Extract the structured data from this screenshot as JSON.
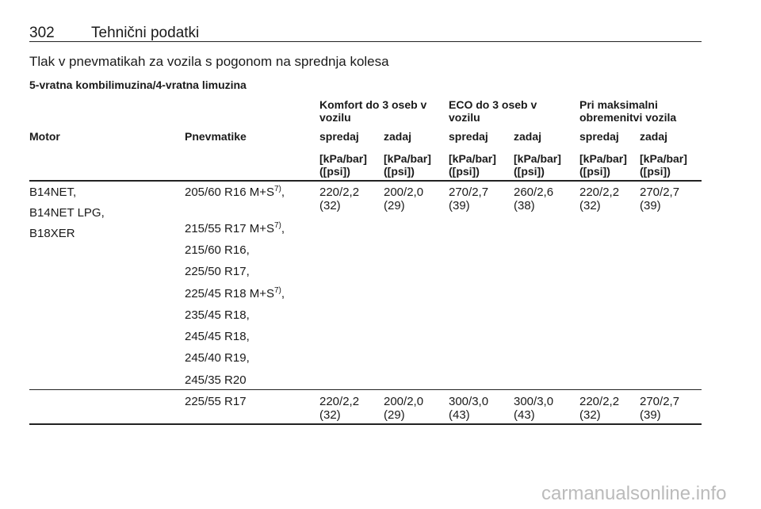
{
  "header": {
    "page": "302",
    "section": "Tehnični podatki"
  },
  "title": "Tlak v pnevmatikah za vozila s pogonom na sprednja kolesa",
  "subtitle": "5-vratna kombilimuzina/4-vratna limuzina",
  "table": {
    "groups": [
      "Komfort do 3 oseb v vozilu",
      "ECO do 3 oseb v vozilu",
      "Pri maksimalni obremenitvi vozila"
    ],
    "columns": [
      "Motor",
      "Pnevmatike",
      "spredaj",
      "zadaj",
      "spredaj",
      "zadaj",
      "spredaj",
      "zadaj"
    ],
    "unit": [
      "[kPa/bar]",
      "([psi])"
    ],
    "rows": [
      {
        "motor": [
          "B14NET,",
          "B14NET LPG,",
          "B18XER"
        ],
        "tires": [
          {
            "text": "205/60 R16 M+S",
            "note": "7)",
            "after": ","
          },
          {
            "text": "215/55 R17 M+S",
            "note": "7)",
            "after": ","
          },
          {
            "text": "215/60 R16,"
          },
          {
            "text": "225/50 R17,"
          },
          {
            "text": "225/45 R18 M+S",
            "note": "7)",
            "after": ","
          },
          {
            "text": "235/45 R18,"
          },
          {
            "text": "245/45 R18,"
          },
          {
            "text": "245/40 R19,"
          },
          {
            "text": "245/35 R20"
          }
        ],
        "pressures": [
          [
            "220/2,2",
            "(32)"
          ],
          [
            "200/2,0",
            "(29)"
          ],
          [
            "270/2,7",
            "(39)"
          ],
          [
            "260/2,6",
            "(38)"
          ],
          [
            "220/2,2",
            "(32)"
          ],
          [
            "270/2,7",
            "(39)"
          ]
        ]
      },
      {
        "motor": [],
        "tires": [
          {
            "text": "225/55 R17"
          }
        ],
        "pressures": [
          [
            "220/2,2",
            "(32)"
          ],
          [
            "200/2,0",
            "(29)"
          ],
          [
            "300/3,0",
            "(43)"
          ],
          [
            "300/3,0",
            "(43)"
          ],
          [
            "220/2,2",
            "(32)"
          ],
          [
            "270/2,7",
            "(39)"
          ]
        ]
      }
    ]
  },
  "watermark": "carmanualsonline.info"
}
